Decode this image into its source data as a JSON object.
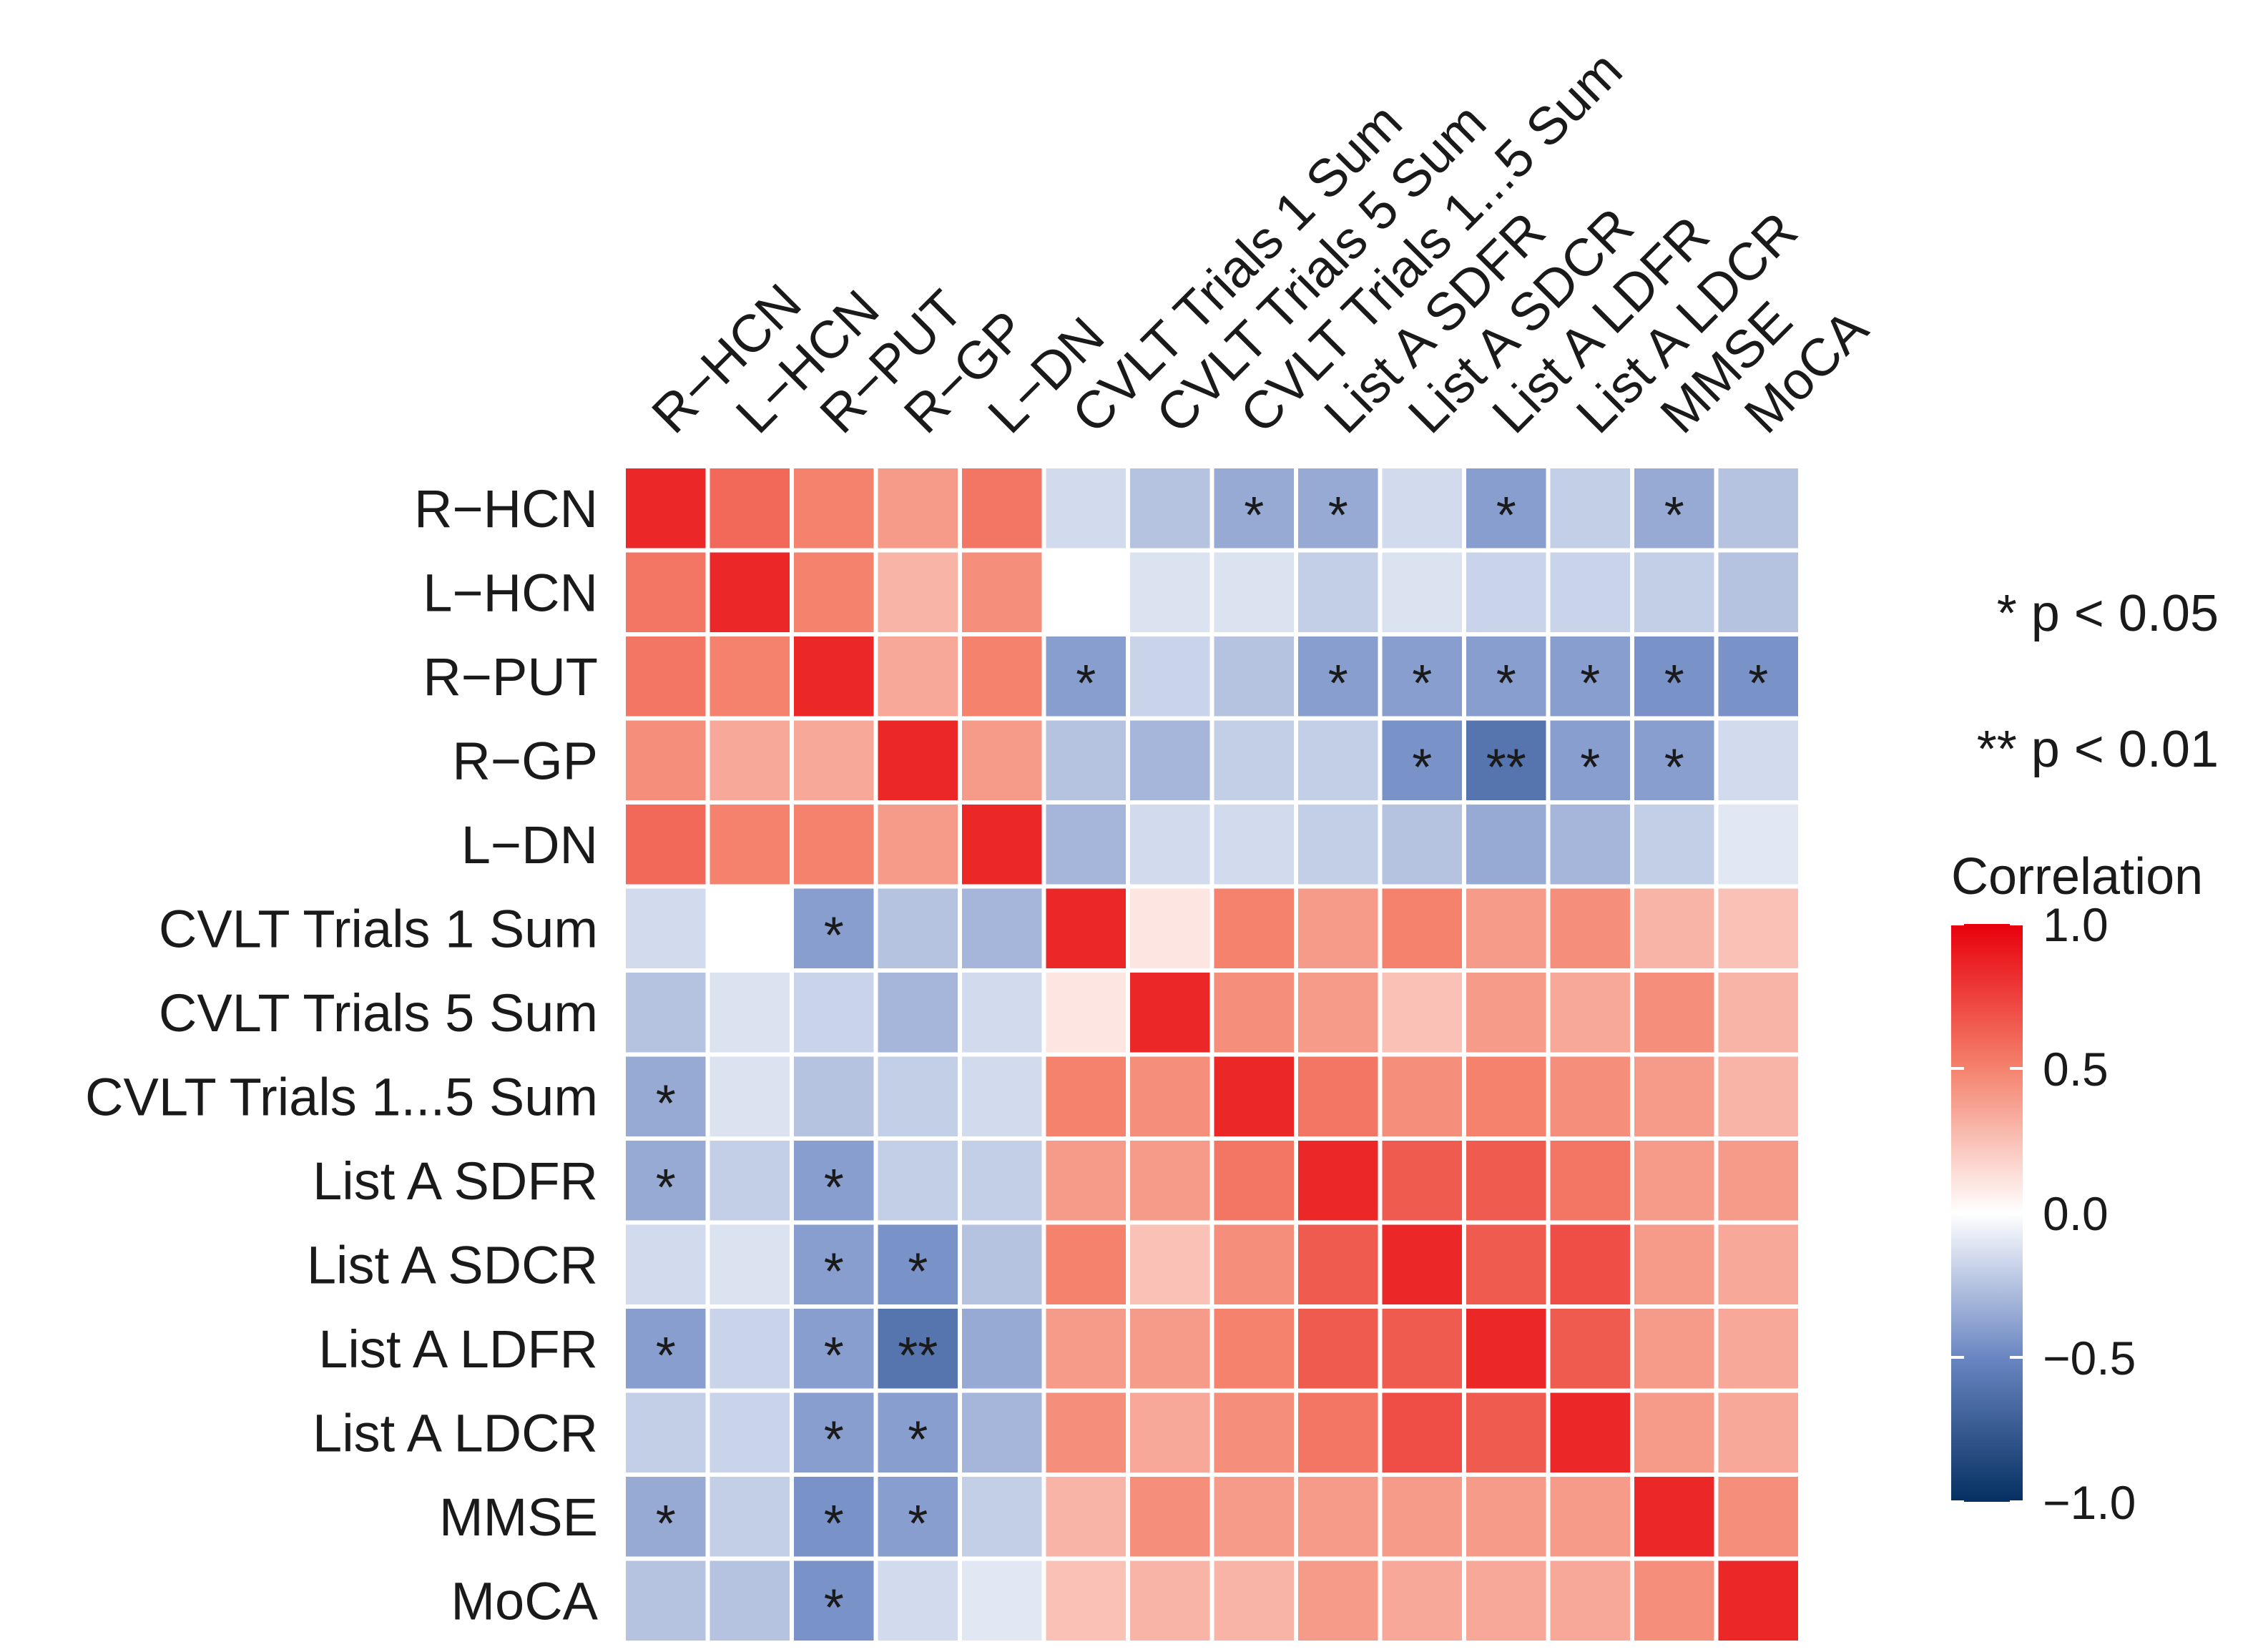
{
  "chart_data": {
    "type": "heatmap",
    "title": "",
    "variables": [
      "R−HCN",
      "L−HCN",
      "R−PUT",
      "R−GP",
      "L−DN",
      "CVLT Trials 1 Sum",
      "CVLT Trials 5 Sum",
      "CVLT Trials 1...5 Sum",
      "List A SDFR",
      "List A SDCR",
      "List A LDFR",
      "List A LDCR",
      "MMSE",
      "MoCA"
    ],
    "values": [
      [
        0.85,
        0.6,
        0.5,
        0.4,
        0.55,
        -0.15,
        -0.25,
        -0.35,
        -0.35,
        -0.15,
        -0.4,
        -0.2,
        -0.35,
        -0.25
      ],
      [
        0.55,
        0.85,
        0.5,
        0.3,
        0.45,
        0.0,
        -0.12,
        -0.12,
        -0.2,
        -0.12,
        -0.18,
        -0.18,
        -0.2,
        -0.25
      ],
      [
        0.55,
        0.5,
        0.85,
        0.35,
        0.5,
        -0.4,
        -0.18,
        -0.25,
        -0.4,
        -0.4,
        -0.4,
        -0.4,
        -0.45,
        -0.45
      ],
      [
        0.45,
        0.35,
        0.35,
        0.85,
        0.4,
        -0.25,
        -0.3,
        -0.2,
        -0.2,
        -0.45,
        -0.6,
        -0.4,
        -0.4,
        -0.15
      ],
      [
        0.6,
        0.5,
        0.5,
        0.4,
        0.85,
        -0.3,
        -0.15,
        -0.15,
        -0.2,
        -0.25,
        -0.35,
        -0.3,
        -0.2,
        -0.1
      ],
      [
        -0.15,
        0.0,
        -0.4,
        -0.25,
        -0.3,
        0.85,
        0.1,
        0.5,
        0.4,
        0.5,
        0.4,
        0.45,
        0.3,
        0.25
      ],
      [
        -0.25,
        -0.12,
        -0.18,
        -0.3,
        -0.15,
        0.1,
        0.85,
        0.45,
        0.4,
        0.25,
        0.4,
        0.35,
        0.45,
        0.3
      ],
      [
        -0.35,
        -0.12,
        -0.25,
        -0.2,
        -0.15,
        0.5,
        0.45,
        0.85,
        0.55,
        0.45,
        0.5,
        0.45,
        0.4,
        0.3
      ],
      [
        -0.35,
        -0.2,
        -0.4,
        -0.2,
        -0.2,
        0.4,
        0.4,
        0.55,
        0.85,
        0.65,
        0.65,
        0.55,
        0.4,
        0.4
      ],
      [
        -0.15,
        -0.12,
        -0.4,
        -0.45,
        -0.25,
        0.5,
        0.25,
        0.45,
        0.65,
        0.85,
        0.65,
        0.7,
        0.4,
        0.35
      ],
      [
        -0.4,
        -0.18,
        -0.4,
        -0.6,
        -0.35,
        0.4,
        0.4,
        0.5,
        0.65,
        0.65,
        0.85,
        0.65,
        0.4,
        0.35
      ],
      [
        -0.2,
        -0.18,
        -0.4,
        -0.4,
        -0.3,
        0.45,
        0.35,
        0.45,
        0.55,
        0.7,
        0.65,
        0.85,
        0.4,
        0.35
      ],
      [
        -0.35,
        -0.2,
        -0.45,
        -0.4,
        -0.2,
        0.3,
        0.45,
        0.4,
        0.4,
        0.4,
        0.4,
        0.4,
        0.85,
        0.45
      ],
      [
        -0.25,
        -0.25,
        -0.45,
        -0.15,
        -0.1,
        0.25,
        0.3,
        0.3,
        0.4,
        0.35,
        0.35,
        0.35,
        0.45,
        0.85
      ]
    ],
    "significance": [
      [
        "",
        "",
        "",
        "",
        "",
        "",
        "",
        "*",
        "*",
        "",
        "*",
        "",
        "*",
        ""
      ],
      [
        "",
        "",
        "",
        "",
        "",
        "",
        "",
        "",
        "",
        "",
        "",
        "",
        "",
        ""
      ],
      [
        "",
        "",
        "",
        "",
        "",
        "*",
        "",
        "",
        "*",
        "*",
        "*",
        "*",
        "*",
        "*"
      ],
      [
        "",
        "",
        "",
        "",
        "",
        "",
        "",
        "",
        "",
        "*",
        "**",
        "*",
        "*",
        ""
      ],
      [
        "",
        "",
        "",
        "",
        "",
        "",
        "",
        "",
        "",
        "",
        "",
        "",
        "",
        ""
      ],
      [
        "",
        "",
        "*",
        "",
        "",
        "",
        "",
        "",
        "",
        "",
        "",
        "",
        "",
        ""
      ],
      [
        "",
        "",
        "",
        "",
        "",
        "",
        "",
        "",
        "",
        "",
        "",
        "",
        "",
        ""
      ],
      [
        "*",
        "",
        "",
        "",
        "",
        "",
        "",
        "",
        "",
        "",
        "",
        "",
        "",
        ""
      ],
      [
        "*",
        "",
        "*",
        "",
        "",
        "",
        "",
        "",
        "",
        "",
        "",
        "",
        "",
        ""
      ],
      [
        "",
        "",
        "*",
        "*",
        "",
        "",
        "",
        "",
        "",
        "",
        "",
        "",
        "",
        ""
      ],
      [
        "*",
        "",
        "*",
        "**",
        "",
        "",
        "",
        "",
        "",
        "",
        "",
        "",
        "",
        ""
      ],
      [
        "",
        "",
        "*",
        "*",
        "",
        "",
        "",
        "",
        "",
        "",
        "",
        "",
        "",
        ""
      ],
      [
        "*",
        "",
        "*",
        "*",
        "",
        "",
        "",
        "",
        "",
        "",
        "",
        "",
        "",
        ""
      ],
      [
        "",
        "",
        "*",
        "",
        "",
        "",
        "",
        "",
        "",
        "",
        "",
        "",
        "",
        ""
      ]
    ],
    "significance_legend": [
      "* p < 0.05",
      "** p < 0.01"
    ],
    "colorbar": {
      "title": "Correlation",
      "range": [
        -1.0,
        1.0
      ],
      "ticks": [
        "1.0",
        "0.5",
        "0.0",
        "−0.5",
        "−1.0"
      ],
      "tick_values": [
        1.0,
        0.5,
        0.0,
        -0.5,
        -1.0
      ],
      "low_color": "#053061",
      "mid_color": "#ffffff",
      "high_color": "#e8000b"
    }
  }
}
